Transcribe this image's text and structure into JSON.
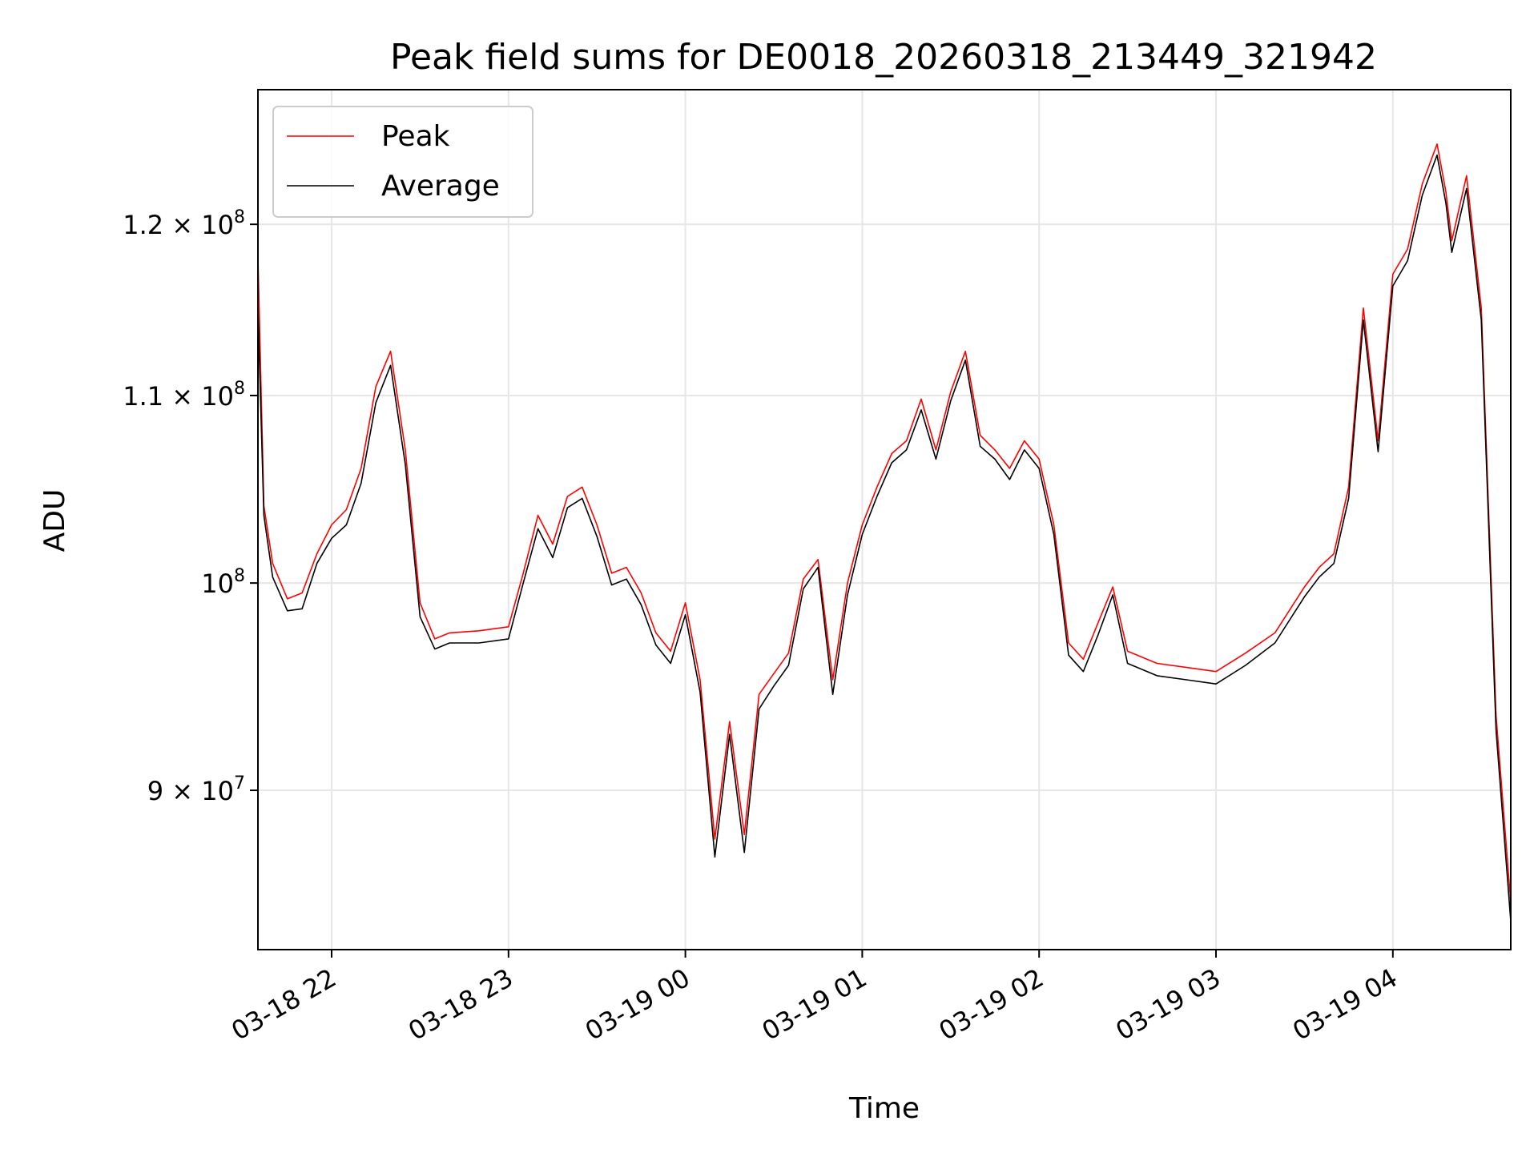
{
  "chart_data": {
    "type": "line",
    "title": "Peak field sums for DE0018_20260318_213449_321942",
    "xlabel": "Time",
    "ylabel": "ADU",
    "yscale": "log",
    "ylim": [
      83000000,
      128500000
    ],
    "xlim": [
      "03-18 21:35",
      "03-19 04:40"
    ],
    "grid": true,
    "legend_position": "top-left",
    "x_ticks": [
      "03-18 22",
      "03-18 23",
      "03-19 00",
      "03-19 01",
      "03-19 02",
      "03-19 03",
      "03-19 04"
    ],
    "y_ticks": [
      {
        "value": 90000000,
        "label": "9 × 10",
        "exp": "7"
      },
      {
        "value": 100000000,
        "label": "10",
        "exp": "8"
      },
      {
        "value": 110000000,
        "label": "1.1 × 10",
        "exp": "8"
      },
      {
        "value": 120000000,
        "label": "1.2 × 10",
        "exp": "8"
      }
    ],
    "series": [
      {
        "name": "Peak",
        "color": "#ff0000",
        "x": [
          "03-18 21:35",
          "03-18 21:37",
          "03-18 21:40",
          "03-18 21:45",
          "03-18 21:50",
          "03-18 21:55",
          "03-18 22:00",
          "03-18 22:05",
          "03-18 22:10",
          "03-18 22:15",
          "03-18 22:20",
          "03-18 22:25",
          "03-18 22:30",
          "03-18 22:35",
          "03-18 22:40",
          "03-18 22:50",
          "03-18 23:00",
          "03-18 23:05",
          "03-18 23:10",
          "03-18 23:15",
          "03-18 23:20",
          "03-18 23:25",
          "03-18 23:30",
          "03-18 23:35",
          "03-18 23:40",
          "03-18 23:45",
          "03-18 23:50",
          "03-18 23:55",
          "03-19 00:00",
          "03-19 00:05",
          "03-19 00:10",
          "03-19 00:15",
          "03-19 00:20",
          "03-19 00:25",
          "03-19 00:30",
          "03-19 00:35",
          "03-19 00:40",
          "03-19 00:45",
          "03-19 00:50",
          "03-19 00:55",
          "03-19 01:00",
          "03-19 01:05",
          "03-19 01:10",
          "03-19 01:15",
          "03-19 01:20",
          "03-19 01:25",
          "03-19 01:30",
          "03-19 01:35",
          "03-19 01:40",
          "03-19 01:45",
          "03-19 01:50",
          "03-19 01:55",
          "03-19 02:00",
          "03-19 02:05",
          "03-19 02:10",
          "03-19 02:15",
          "03-19 02:20",
          "03-19 02:25",
          "03-19 02:30",
          "03-19 02:40",
          "03-19 02:50",
          "03-19 03:00",
          "03-19 03:10",
          "03-19 03:20",
          "03-19 03:30",
          "03-19 03:35",
          "03-19 03:40",
          "03-19 03:45",
          "03-19 03:50",
          "03-19 03:55",
          "03-19 04:00",
          "03-19 04:05",
          "03-19 04:10",
          "03-19 04:15",
          "03-19 04:18",
          "03-19 04:20",
          "03-19 04:25",
          "03-19 04:30",
          "03-19 04:35",
          "03-19 04:40"
        ],
        "y": [
          118000000,
          104000000,
          101000000,
          99200000,
          99500000,
          101500000,
          103000000,
          103800000,
          106000000,
          110500000,
          112500000,
          107000000,
          99000000,
          97200000,
          97500000,
          97600000,
          97800000,
          100500000,
          103500000,
          102000000,
          104500000,
          105000000,
          103000000,
          100500000,
          100800000,
          99500000,
          97500000,
          96600000,
          99000000,
          95200000,
          87800000,
          93200000,
          88000000,
          94500000,
          95500000,
          96500000,
          100200000,
          101200000,
          95200000,
          100000000,
          103000000,
          105000000,
          106800000,
          107500000,
          109800000,
          107000000,
          110200000,
          112500000,
          107800000,
          107000000,
          106000000,
          107500000,
          106500000,
          103000000,
          97000000,
          96200000,
          98000000,
          99800000,
          96600000,
          96000000,
          95800000,
          95600000,
          96500000,
          97500000,
          99800000,
          100800000,
          101500000,
          105000000,
          115000000,
          107500000,
          117000000,
          118500000,
          122500000,
          125000000,
          122000000,
          119000000,
          123000000,
          115000000,
          93500000,
          85000000
        ]
      },
      {
        "name": "Average",
        "color": "#000000",
        "x": [
          "03-18 21:35",
          "03-18 21:37",
          "03-18 21:40",
          "03-18 21:45",
          "03-18 21:50",
          "03-18 21:55",
          "03-18 22:00",
          "03-18 22:05",
          "03-18 22:10",
          "03-18 22:15",
          "03-18 22:20",
          "03-18 22:25",
          "03-18 22:30",
          "03-18 22:35",
          "03-18 22:40",
          "03-18 22:50",
          "03-18 23:00",
          "03-18 23:05",
          "03-18 23:10",
          "03-18 23:15",
          "03-18 23:20",
          "03-18 23:25",
          "03-18 23:30",
          "03-18 23:35",
          "03-18 23:40",
          "03-18 23:45",
          "03-18 23:50",
          "03-18 23:55",
          "03-19 00:00",
          "03-19 00:05",
          "03-19 00:10",
          "03-19 00:15",
          "03-19 00:20",
          "03-19 00:25",
          "03-19 00:30",
          "03-19 00:35",
          "03-19 00:40",
          "03-19 00:45",
          "03-19 00:50",
          "03-19 00:55",
          "03-19 01:00",
          "03-19 01:05",
          "03-19 01:10",
          "03-19 01:15",
          "03-19 01:20",
          "03-19 01:25",
          "03-19 01:30",
          "03-19 01:35",
          "03-19 01:40",
          "03-19 01:45",
          "03-19 01:50",
          "03-19 01:55",
          "03-19 02:00",
          "03-19 02:05",
          "03-19 02:10",
          "03-19 02:15",
          "03-19 02:20",
          "03-19 02:25",
          "03-19 02:30",
          "03-19 02:40",
          "03-19 02:50",
          "03-19 03:00",
          "03-19 03:10",
          "03-19 03:20",
          "03-19 03:30",
          "03-19 03:35",
          "03-19 03:40",
          "03-19 03:45",
          "03-19 03:50",
          "03-19 03:55",
          "03-19 04:00",
          "03-19 04:05",
          "03-19 04:10",
          "03-19 04:15",
          "03-19 04:18",
          "03-19 04:20",
          "03-19 04:25",
          "03-19 04:30",
          "03-19 04:35",
          "03-19 04:40"
        ],
        "y": [
          115000000,
          103500000,
          100300000,
          98600000,
          98700000,
          101000000,
          102300000,
          103000000,
          105200000,
          109600000,
          111700000,
          106200000,
          98300000,
          96700000,
          97000000,
          97000000,
          97200000,
          100000000,
          102800000,
          101300000,
          103900000,
          104400000,
          102400000,
          99900000,
          100200000,
          98900000,
          96900000,
          96000000,
          98400000,
          94600000,
          87000000,
          92600000,
          87200000,
          93800000,
          94900000,
          95900000,
          99700000,
          100800000,
          94500000,
          99400000,
          102500000,
          104500000,
          106300000,
          107000000,
          109200000,
          106500000,
          109700000,
          112000000,
          107200000,
          106500000,
          105400000,
          107000000,
          106000000,
          102500000,
          96400000,
          95600000,
          97400000,
          99400000,
          96000000,
          95400000,
          95200000,
          95000000,
          95900000,
          97000000,
          99300000,
          100300000,
          101000000,
          104400000,
          114300000,
          106900000,
          116300000,
          117800000,
          121800000,
          124300000,
          121300000,
          118300000,
          122200000,
          114300000,
          92800000,
          84200000
        ]
      }
    ]
  }
}
